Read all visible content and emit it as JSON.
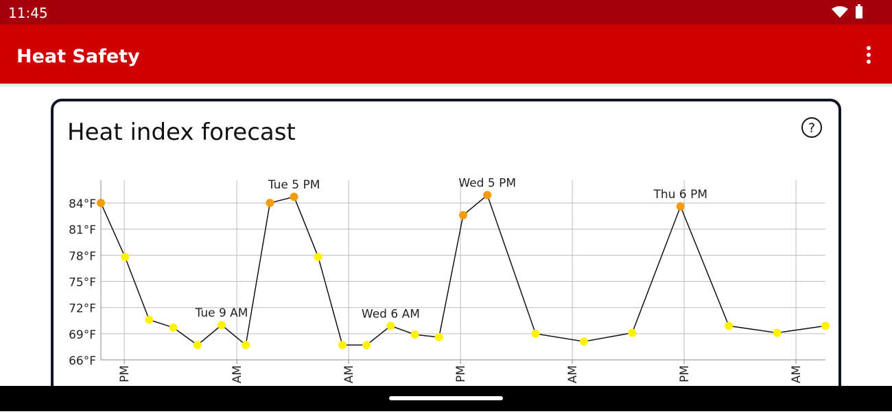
{
  "status_bar": {
    "time": "11:45"
  },
  "app_bar": {
    "title": "Heat Safety"
  },
  "card": {
    "title": "Heat index forecast"
  },
  "chart_data": {
    "type": "line",
    "x": [
      0,
      1,
      2,
      3,
      4,
      5,
      6,
      7,
      8,
      9,
      10,
      11,
      12,
      13,
      14,
      15,
      16,
      18,
      20,
      22,
      24,
      26,
      28,
      30
    ],
    "values": [
      84.0,
      77.8,
      70.6,
      69.7,
      67.7,
      70.0,
      67.7,
      84.0,
      84.7,
      77.8,
      67.7,
      67.7,
      69.9,
      68.9,
      68.6,
      82.6,
      84.9,
      69.0,
      68.1,
      69.1,
      83.6,
      69.9,
      69.1,
      69.9
    ],
    "colors": [
      "#f59b0c",
      "#fff200",
      "#fff200",
      "#fff200",
      "#fff200",
      "#fff200",
      "#fff200",
      "#f59b0c",
      "#f59b0c",
      "#fff200",
      "#fff200",
      "#fff200",
      "#fff200",
      "#fff200",
      "#fff200",
      "#f59b0c",
      "#f59b0c",
      "#fff200",
      "#fff200",
      "#fff200",
      "#f59b0c",
      "#fff200",
      "#fff200",
      "#fff200"
    ],
    "line_color": "#111111",
    "xlim": [
      0,
      30
    ],
    "ylim": [
      66,
      86.6
    ],
    "yticks": [
      {
        "value": 66,
        "label": "66°F"
      },
      {
        "value": 69,
        "label": "69°F"
      },
      {
        "value": 72,
        "label": "72°F"
      },
      {
        "value": 75,
        "label": "75°F"
      },
      {
        "value": 78,
        "label": "78°F"
      },
      {
        "value": 81,
        "label": "81°F"
      },
      {
        "value": 84,
        "label": "84°F"
      }
    ],
    "xticks": [
      {
        "value": 0.97,
        "label": "PM"
      },
      {
        "value": 5.63,
        "label": "AM"
      },
      {
        "value": 10.26,
        "label": "AM"
      },
      {
        "value": 14.89,
        "label": "PM"
      },
      {
        "value": 19.52,
        "label": "AM"
      },
      {
        "value": 24.15,
        "label": "PM"
      },
      {
        "value": 28.78,
        "label": "AM"
      }
    ],
    "grid": true,
    "annotations": [
      {
        "text": "Tue 9 AM",
        "x": 5
      },
      {
        "text": "Tue 5 PM",
        "x": 8
      },
      {
        "text": "Wed 6 AM",
        "x": 12
      },
      {
        "text": "Wed 5 PM",
        "x": 16
      },
      {
        "text": "Thu 6 PM",
        "x": 24
      }
    ]
  }
}
